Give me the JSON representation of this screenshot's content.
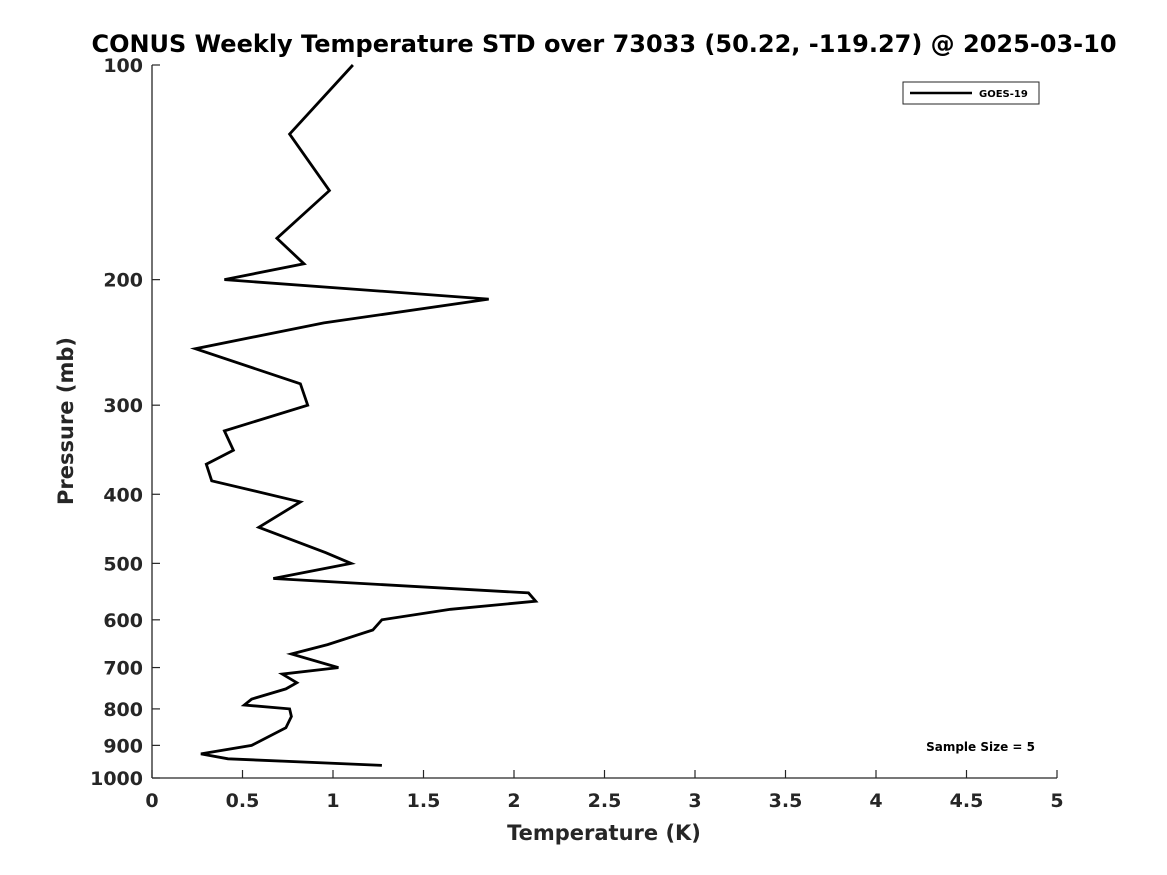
{
  "chart_data": {
    "type": "line",
    "title": "CONUS Weekly Temperature STD over 73033 (50.22, -119.27) @ 2025-03-10",
    "xlabel": "Temperature (K)",
    "ylabel": "Pressure (mb)",
    "xlim": [
      0,
      5
    ],
    "ylim": [
      100,
      1000
    ],
    "y_scale": "log",
    "y_reversed": true,
    "xticks": [
      0,
      0.5,
      1,
      1.5,
      2,
      2.5,
      3,
      3.5,
      4,
      4.5,
      5
    ],
    "xtick_labels": [
      "0",
      "0.5",
      "1",
      "1.5",
      "2",
      "2.5",
      "3",
      "3.5",
      "4",
      "4.5",
      "5"
    ],
    "yticks": [
      100,
      200,
      300,
      400,
      500,
      600,
      700,
      800,
      900,
      1000
    ],
    "ytick_labels": [
      "100",
      "200",
      "300",
      "400",
      "500",
      "600",
      "700",
      "800",
      "900",
      "1000"
    ],
    "grid": false,
    "legend_position": "top-right",
    "annotation": "Sample Size = 5",
    "series": [
      {
        "name": "GOES-19",
        "color": "#000000",
        "points": [
          {
            "x": 1.11,
            "p": 100
          },
          {
            "x": 0.76,
            "p": 125
          },
          {
            "x": 0.98,
            "p": 150
          },
          {
            "x": 0.69,
            "p": 175
          },
          {
            "x": 0.84,
            "p": 190
          },
          {
            "x": 0.4,
            "p": 200
          },
          {
            "x": 1.86,
            "p": 213
          },
          {
            "x": 0.95,
            "p": 230
          },
          {
            "x": 0.24,
            "p": 250
          },
          {
            "x": 0.82,
            "p": 280
          },
          {
            "x": 0.86,
            "p": 300
          },
          {
            "x": 0.4,
            "p": 326
          },
          {
            "x": 0.45,
            "p": 347
          },
          {
            "x": 0.3,
            "p": 363
          },
          {
            "x": 0.33,
            "p": 383
          },
          {
            "x": 0.82,
            "p": 410
          },
          {
            "x": 0.59,
            "p": 445
          },
          {
            "x": 0.96,
            "p": 483
          },
          {
            "x": 1.1,
            "p": 500
          },
          {
            "x": 0.67,
            "p": 525
          },
          {
            "x": 2.08,
            "p": 550
          },
          {
            "x": 2.12,
            "p": 565
          },
          {
            "x": 1.65,
            "p": 580
          },
          {
            "x": 1.27,
            "p": 600
          },
          {
            "x": 1.22,
            "p": 620
          },
          {
            "x": 0.97,
            "p": 650
          },
          {
            "x": 0.77,
            "p": 670
          },
          {
            "x": 1.03,
            "p": 700
          },
          {
            "x": 0.72,
            "p": 715
          },
          {
            "x": 0.8,
            "p": 735
          },
          {
            "x": 0.74,
            "p": 750
          },
          {
            "x": 0.55,
            "p": 775
          },
          {
            "x": 0.51,
            "p": 790
          },
          {
            "x": 0.76,
            "p": 800
          },
          {
            "x": 0.77,
            "p": 820
          },
          {
            "x": 0.74,
            "p": 850
          },
          {
            "x": 0.55,
            "p": 900
          },
          {
            "x": 0.27,
            "p": 925
          },
          {
            "x": 0.42,
            "p": 940
          },
          {
            "x": 1.27,
            "p": 960
          }
        ]
      }
    ]
  }
}
